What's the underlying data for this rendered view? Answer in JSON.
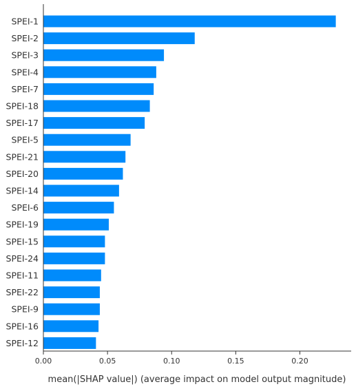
{
  "chart_data": {
    "type": "bar",
    "orientation": "horizontal",
    "categories": [
      "SPEI-1",
      "SPEI-2",
      "SPEI-3",
      "SPEI-4",
      "SPEI-7",
      "SPEI-18",
      "SPEI-17",
      "SPEI-5",
      "SPEI-21",
      "SPEI-20",
      "SPEI-14",
      "SPEI-6",
      "SPEI-19",
      "SPEI-15",
      "SPEI-24",
      "SPEI-11",
      "SPEI-22",
      "SPEI-9",
      "SPEI-16",
      "SPEI-12"
    ],
    "values": [
      0.228,
      0.118,
      0.094,
      0.088,
      0.086,
      0.083,
      0.079,
      0.068,
      0.064,
      0.062,
      0.059,
      0.055,
      0.051,
      0.048,
      0.048,
      0.045,
      0.044,
      0.044,
      0.043,
      0.041
    ],
    "xlabel": "mean(|SHAP value|) (average impact on model output magnitude)",
    "ylabel": "",
    "title": "",
    "xlim": [
      0,
      0.24
    ],
    "xticks": [
      0.0,
      0.05,
      0.1,
      0.15,
      0.2
    ],
    "xtick_labels": [
      "0.00",
      "0.05",
      "0.10",
      "0.15",
      "0.20"
    ],
    "grid": false,
    "bar_color": "#008bfb",
    "axis_color": "#333333"
  }
}
